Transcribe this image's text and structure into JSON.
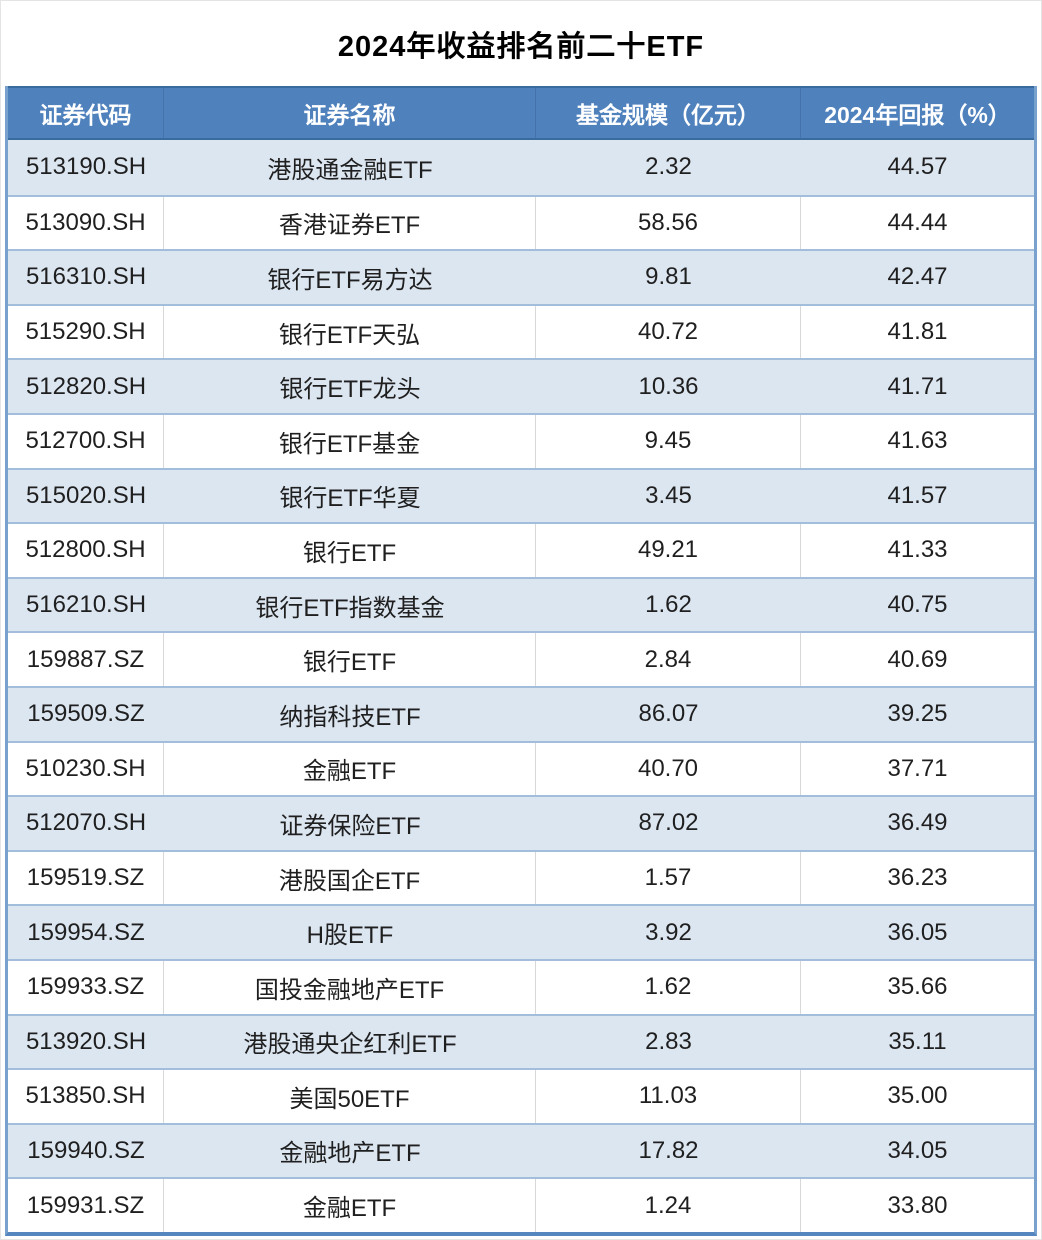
{
  "title": "2024年收益排名前二十ETF",
  "columns": [
    "证券代码",
    "证券名称",
    "基金规模（亿元）",
    "2024年回报（%）"
  ],
  "rows": [
    {
      "code": "513190.SH",
      "name": "港股通金融ETF",
      "scale": "2.32",
      "ret": "44.57"
    },
    {
      "code": "513090.SH",
      "name": "香港证券ETF",
      "scale": "58.56",
      "ret": "44.44"
    },
    {
      "code": "516310.SH",
      "name": "银行ETF易方达",
      "scale": "9.81",
      "ret": "42.47"
    },
    {
      "code": "515290.SH",
      "name": "银行ETF天弘",
      "scale": "40.72",
      "ret": "41.81"
    },
    {
      "code": "512820.SH",
      "name": "银行ETF龙头",
      "scale": "10.36",
      "ret": "41.71"
    },
    {
      "code": "512700.SH",
      "name": "银行ETF基金",
      "scale": "9.45",
      "ret": "41.63"
    },
    {
      "code": "515020.SH",
      "name": "银行ETF华夏",
      "scale": "3.45",
      "ret": "41.57"
    },
    {
      "code": "512800.SH",
      "name": "银行ETF",
      "scale": "49.21",
      "ret": "41.33"
    },
    {
      "code": "516210.SH",
      "name": "银行ETF指数基金",
      "scale": "1.62",
      "ret": "40.75"
    },
    {
      "code": "159887.SZ",
      "name": "银行ETF",
      "scale": "2.84",
      "ret": "40.69"
    },
    {
      "code": "159509.SZ",
      "name": "纳指科技ETF",
      "scale": "86.07",
      "ret": "39.25"
    },
    {
      "code": "510230.SH",
      "name": "金融ETF",
      "scale": "40.70",
      "ret": "37.71"
    },
    {
      "code": "512070.SH",
      "name": "证券保险ETF",
      "scale": "87.02",
      "ret": "36.49"
    },
    {
      "code": "159519.SZ",
      "name": "港股国企ETF",
      "scale": "1.57",
      "ret": "36.23"
    },
    {
      "code": "159954.SZ",
      "name": "H股ETF",
      "scale": "3.92",
      "ret": "36.05"
    },
    {
      "code": "159933.SZ",
      "name": "国投金融地产ETF",
      "scale": "1.62",
      "ret": "35.66"
    },
    {
      "code": "513920.SH",
      "name": "港股通央企红利ETF",
      "scale": "2.83",
      "ret": "35.11"
    },
    {
      "code": "513850.SH",
      "name": "美国50ETF",
      "scale": "11.03",
      "ret": "35.00"
    },
    {
      "code": "159940.SZ",
      "name": "金融地产ETF",
      "scale": "17.82",
      "ret": "34.05"
    },
    {
      "code": "159931.SZ",
      "name": "金融ETF",
      "scale": "1.24",
      "ret": "33.80"
    }
  ],
  "colors": {
    "header_bg": "#4F81BD",
    "header_text": "#FFFFFF",
    "header_edge": "#3A6B9E",
    "row_alt_bg": "#DCE6F1",
    "row_bg": "#FFFFFF",
    "divider": "#A3BDDC",
    "side_border": "#78A2CD",
    "bottom_border": "#5586BE",
    "text": "#1F1F1F"
  },
  "chart_data": {
    "type": "table",
    "title": "2024年收益排名前二十ETF",
    "columns": [
      "证券代码",
      "证券名称",
      "基金规模（亿元）",
      "2024年回报（%）"
    ],
    "rows": [
      [
        "513190.SH",
        "港股通金融ETF",
        2.32,
        44.57
      ],
      [
        "513090.SH",
        "香港证券ETF",
        58.56,
        44.44
      ],
      [
        "516310.SH",
        "银行ETF易方达",
        9.81,
        42.47
      ],
      [
        "515290.SH",
        "银行ETF天弘",
        40.72,
        41.81
      ],
      [
        "512820.SH",
        "银行ETF龙头",
        10.36,
        41.71
      ],
      [
        "512700.SH",
        "银行ETF基金",
        9.45,
        41.63
      ],
      [
        "515020.SH",
        "银行ETF华夏",
        3.45,
        41.57
      ],
      [
        "512800.SH",
        "银行ETF",
        49.21,
        41.33
      ],
      [
        "516210.SH",
        "银行ETF指数基金",
        1.62,
        40.75
      ],
      [
        "159887.SZ",
        "银行ETF",
        2.84,
        40.69
      ],
      [
        "159509.SZ",
        "纳指科技ETF",
        86.07,
        39.25
      ],
      [
        "510230.SH",
        "金融ETF",
        40.7,
        37.71
      ],
      [
        "512070.SH",
        "证券保险ETF",
        87.02,
        36.49
      ],
      [
        "159519.SZ",
        "港股国企ETF",
        1.57,
        36.23
      ],
      [
        "159954.SZ",
        "H股ETF",
        3.92,
        36.05
      ],
      [
        "159933.SZ",
        "国投金融地产ETF",
        1.62,
        35.66
      ],
      [
        "513920.SH",
        "港股通央企红利ETF",
        2.83,
        35.11
      ],
      [
        "513850.SH",
        "美国50ETF",
        11.03,
        35.0
      ],
      [
        "159940.SZ",
        "金融地产ETF",
        17.82,
        34.05
      ],
      [
        "159931.SZ",
        "金融ETF",
        1.24,
        33.8
      ]
    ]
  }
}
